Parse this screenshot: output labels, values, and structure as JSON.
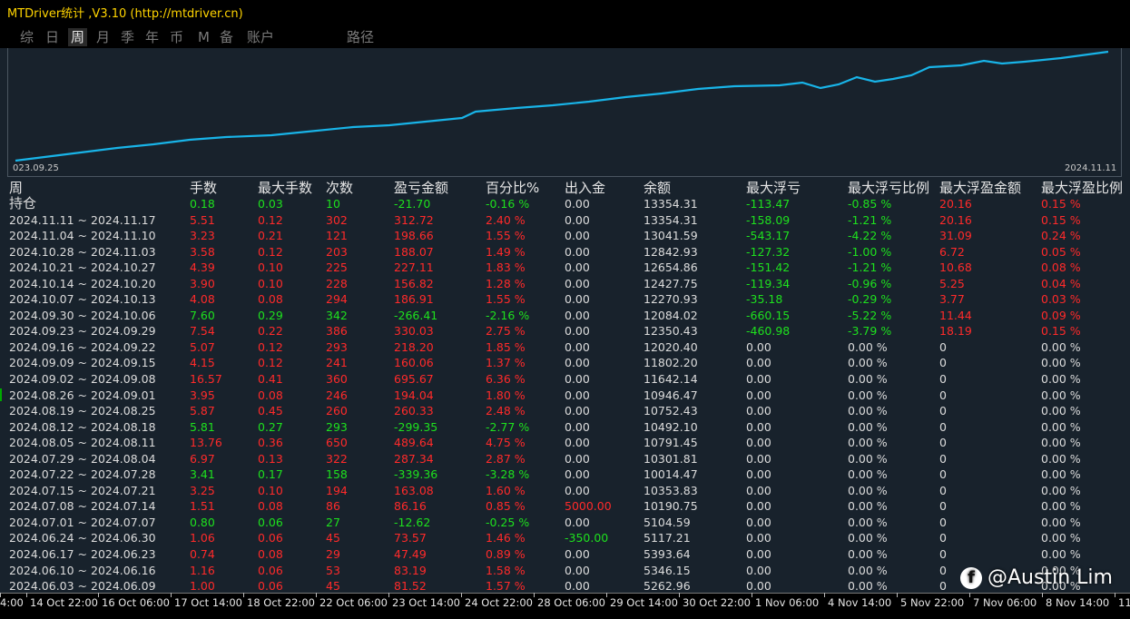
{
  "window": {
    "title": "MTDriver统计 ,V3.10 (http://mtdriver.cn)"
  },
  "tabs": [
    {
      "label": "综",
      "active": false
    },
    {
      "label": "日",
      "active": false
    },
    {
      "label": "周",
      "active": true
    },
    {
      "label": "月",
      "active": false
    },
    {
      "label": "季",
      "active": false
    },
    {
      "label": "年",
      "active": false
    },
    {
      "label": "币",
      "active": false
    },
    {
      "label": "M",
      "active": false
    },
    {
      "label": "备",
      "active": false
    },
    {
      "label": "账户",
      "active": false
    },
    {
      "label": "路径",
      "active": false
    }
  ],
  "chart": {
    "start_label": "023.09.25",
    "end_label": "2024.11.11",
    "line_color": "#18b4e8"
  },
  "table": {
    "headers": [
      "周",
      "手数",
      "最大手数",
      "次数",
      "盈亏金额",
      "百分比%",
      "出入金",
      "余额",
      "最大浮亏",
      "最大浮亏比例",
      "最大浮盈金额",
      "最大浮盈比例"
    ],
    "position_row": {
      "label": "持仓",
      "lots": "0.18",
      "max_lots": "0.03",
      "count": "10",
      "pnl": "-21.70",
      "pct": "-0.16 %",
      "flow": "0.00",
      "balance": "13354.31",
      "max_dd": "-113.47",
      "max_dd_pct": "-0.85 %",
      "max_fp": "20.16",
      "max_fp_pct": "0.15 %",
      "color": "g"
    },
    "rows": [
      {
        "label": "2024.11.11 ~ 2024.11.17",
        "lots": "5.51",
        "max_lots": "0.12",
        "count": "302",
        "pnl": "312.72",
        "pct": "2.40 %",
        "flow": "0.00",
        "balance": "13354.31",
        "max_dd": "-158.09",
        "max_dd_pct": "-1.21 %",
        "max_fp": "20.16",
        "max_fp_pct": "0.15 %",
        "color": "r"
      },
      {
        "label": "2024.11.04 ~ 2024.11.10",
        "lots": "3.23",
        "max_lots": "0.21",
        "count": "121",
        "pnl": "198.66",
        "pct": "1.55 %",
        "flow": "0.00",
        "balance": "13041.59",
        "max_dd": "-543.17",
        "max_dd_pct": "-4.22 %",
        "max_fp": "31.09",
        "max_fp_pct": "0.24 %",
        "color": "r"
      },
      {
        "label": "2024.10.28 ~ 2024.11.03",
        "lots": "3.58",
        "max_lots": "0.12",
        "count": "203",
        "pnl": "188.07",
        "pct": "1.49 %",
        "flow": "0.00",
        "balance": "12842.93",
        "max_dd": "-127.32",
        "max_dd_pct": "-1.00 %",
        "max_fp": "6.72",
        "max_fp_pct": "0.05 %",
        "color": "r"
      },
      {
        "label": "2024.10.21 ~ 2024.10.27",
        "lots": "4.39",
        "max_lots": "0.10",
        "count": "225",
        "pnl": "227.11",
        "pct": "1.83 %",
        "flow": "0.00",
        "balance": "12654.86",
        "max_dd": "-151.42",
        "max_dd_pct": "-1.21 %",
        "max_fp": "10.68",
        "max_fp_pct": "0.08 %",
        "color": "r"
      },
      {
        "label": "2024.10.14 ~ 2024.10.20",
        "lots": "3.90",
        "max_lots": "0.10",
        "count": "228",
        "pnl": "156.82",
        "pct": "1.28 %",
        "flow": "0.00",
        "balance": "12427.75",
        "max_dd": "-119.34",
        "max_dd_pct": "-0.96 %",
        "max_fp": "5.25",
        "max_fp_pct": "0.04 %",
        "color": "r"
      },
      {
        "label": "2024.10.07 ~ 2024.10.13",
        "lots": "4.08",
        "max_lots": "0.08",
        "count": "294",
        "pnl": "186.91",
        "pct": "1.55 %",
        "flow": "0.00",
        "balance": "12270.93",
        "max_dd": "-35.18",
        "max_dd_pct": "-0.29 %",
        "max_fp": "3.77",
        "max_fp_pct": "0.03 %",
        "color": "r"
      },
      {
        "label": "2024.09.30 ~ 2024.10.06",
        "lots": "7.60",
        "max_lots": "0.29",
        "count": "342",
        "pnl": "-266.41",
        "pct": "-2.16 %",
        "flow": "0.00",
        "balance": "12084.02",
        "max_dd": "-660.15",
        "max_dd_pct": "-5.22 %",
        "max_fp": "11.44",
        "max_fp_pct": "0.09 %",
        "color": "g"
      },
      {
        "label": "2024.09.23 ~ 2024.09.29",
        "lots": "7.54",
        "max_lots": "0.22",
        "count": "386",
        "pnl": "330.03",
        "pct": "2.75 %",
        "flow": "0.00",
        "balance": "12350.43",
        "max_dd": "-460.98",
        "max_dd_pct": "-3.79 %",
        "max_fp": "18.19",
        "max_fp_pct": "0.15 %",
        "color": "r"
      },
      {
        "label": "2024.09.16 ~ 2024.09.22",
        "lots": "5.07",
        "max_lots": "0.12",
        "count": "293",
        "pnl": "218.20",
        "pct": "1.85 %",
        "flow": "0.00",
        "balance": "12020.40",
        "max_dd": "0.00",
        "max_dd_pct": "0.00 %",
        "max_fp": "0",
        "max_fp_pct": "0.00 %",
        "color": "r"
      },
      {
        "label": "2024.09.09 ~ 2024.09.15",
        "lots": "4.15",
        "max_lots": "0.12",
        "count": "241",
        "pnl": "160.06",
        "pct": "1.37 %",
        "flow": "0.00",
        "balance": "11802.20",
        "max_dd": "0.00",
        "max_dd_pct": "0.00 %",
        "max_fp": "0",
        "max_fp_pct": "0.00 %",
        "color": "r"
      },
      {
        "label": "2024.09.02 ~ 2024.09.08",
        "lots": "16.57",
        "max_lots": "0.41",
        "count": "360",
        "pnl": "695.67",
        "pct": "6.36 %",
        "flow": "0.00",
        "balance": "11642.14",
        "max_dd": "0.00",
        "max_dd_pct": "0.00 %",
        "max_fp": "0",
        "max_fp_pct": "0.00 %",
        "color": "r"
      },
      {
        "label": "2024.08.26 ~ 2024.09.01",
        "lots": "3.95",
        "max_lots": "0.08",
        "count": "246",
        "pnl": "194.04",
        "pct": "1.80 %",
        "flow": "0.00",
        "balance": "10946.47",
        "max_dd": "0.00",
        "max_dd_pct": "0.00 %",
        "max_fp": "0",
        "max_fp_pct": "0.00 %",
        "color": "r"
      },
      {
        "label": "2024.08.19 ~ 2024.08.25",
        "lots": "5.87",
        "max_lots": "0.45",
        "count": "260",
        "pnl": "260.33",
        "pct": "2.48 %",
        "flow": "0.00",
        "balance": "10752.43",
        "max_dd": "0.00",
        "max_dd_pct": "0.00 %",
        "max_fp": "0",
        "max_fp_pct": "0.00 %",
        "color": "r"
      },
      {
        "label": "2024.08.12 ~ 2024.08.18",
        "lots": "5.81",
        "max_lots": "0.27",
        "count": "293",
        "pnl": "-299.35",
        "pct": "-2.77 %",
        "flow": "0.00",
        "balance": "10492.10",
        "max_dd": "0.00",
        "max_dd_pct": "0.00 %",
        "max_fp": "0",
        "max_fp_pct": "0.00 %",
        "color": "g"
      },
      {
        "label": "2024.08.05 ~ 2024.08.11",
        "lots": "13.76",
        "max_lots": "0.36",
        "count": "650",
        "pnl": "489.64",
        "pct": "4.75 %",
        "flow": "0.00",
        "balance": "10791.45",
        "max_dd": "0.00",
        "max_dd_pct": "0.00 %",
        "max_fp": "0",
        "max_fp_pct": "0.00 %",
        "color": "r"
      },
      {
        "label": "2024.07.29 ~ 2024.08.04",
        "lots": "6.97",
        "max_lots": "0.13",
        "count": "322",
        "pnl": "287.34",
        "pct": "2.87 %",
        "flow": "0.00",
        "balance": "10301.81",
        "max_dd": "0.00",
        "max_dd_pct": "0.00 %",
        "max_fp": "0",
        "max_fp_pct": "0.00 %",
        "color": "r"
      },
      {
        "label": "2024.07.22 ~ 2024.07.28",
        "lots": "3.41",
        "max_lots": "0.17",
        "count": "158",
        "pnl": "-339.36",
        "pct": "-3.28 %",
        "flow": "0.00",
        "balance": "10014.47",
        "max_dd": "0.00",
        "max_dd_pct": "0.00 %",
        "max_fp": "0",
        "max_fp_pct": "0.00 %",
        "color": "g"
      },
      {
        "label": "2024.07.15 ~ 2024.07.21",
        "lots": "3.25",
        "max_lots": "0.10",
        "count": "194",
        "pnl": "163.08",
        "pct": "1.60 %",
        "flow": "0.00",
        "balance": "10353.83",
        "max_dd": "0.00",
        "max_dd_pct": "0.00 %",
        "max_fp": "0",
        "max_fp_pct": "0.00 %",
        "color": "r"
      },
      {
        "label": "2024.07.08 ~ 2024.07.14",
        "lots": "1.51",
        "max_lots": "0.08",
        "count": "86",
        "pnl": "86.16",
        "pct": "0.85 %",
        "flow": "5000.00",
        "balance": "10190.75",
        "max_dd": "0.00",
        "max_dd_pct": "0.00 %",
        "max_fp": "0",
        "max_fp_pct": "0.00 %",
        "color": "r",
        "flow_color": "r"
      },
      {
        "label": "2024.07.01 ~ 2024.07.07",
        "lots": "0.80",
        "max_lots": "0.06",
        "count": "27",
        "pnl": "-12.62",
        "pct": "-0.25 %",
        "flow": "0.00",
        "balance": "5104.59",
        "max_dd": "0.00",
        "max_dd_pct": "0.00 %",
        "max_fp": "0",
        "max_fp_pct": "0.00 %",
        "color": "g"
      },
      {
        "label": "2024.06.24 ~ 2024.06.30",
        "lots": "1.06",
        "max_lots": "0.06",
        "count": "45",
        "pnl": "73.57",
        "pct": "1.46 %",
        "flow": "-350.00",
        "balance": "5117.21",
        "max_dd": "0.00",
        "max_dd_pct": "0.00 %",
        "max_fp": "0",
        "max_fp_pct": "0.00 %",
        "color": "r",
        "flow_color": "g"
      },
      {
        "label": "2024.06.17 ~ 2024.06.23",
        "lots": "0.74",
        "max_lots": "0.08",
        "count": "29",
        "pnl": "47.49",
        "pct": "0.89 %",
        "flow": "0.00",
        "balance": "5393.64",
        "max_dd": "0.00",
        "max_dd_pct": "0.00 %",
        "max_fp": "0",
        "max_fp_pct": "0.00 %",
        "color": "r"
      },
      {
        "label": "2024.06.10 ~ 2024.06.16",
        "lots": "1.16",
        "max_lots": "0.06",
        "count": "53",
        "pnl": "83.19",
        "pct": "1.58 %",
        "flow": "0.00",
        "balance": "5346.15",
        "max_dd": "0.00",
        "max_dd_pct": "0.00 %",
        "max_fp": "0",
        "max_fp_pct": "0.00 %",
        "color": "r"
      },
      {
        "label": "2024.06.03 ~ 2024.06.09",
        "lots": "1.00",
        "max_lots": "0.06",
        "count": "45",
        "pnl": "81.52",
        "pct": "1.57 %",
        "flow": "0.00",
        "balance": "5262.96",
        "max_dd": "0.00",
        "max_dd_pct": "0.00 %",
        "max_fp": "0",
        "max_fp_pct": "0.00 %",
        "color": "r"
      }
    ]
  },
  "time_axis": {
    "labels": [
      "4:00",
      "14 Oct 22:00",
      "16 Oct 06:00",
      "17 Oct 14:00",
      "18 Oct 22:00",
      "22 Oct 06:00",
      "23 Oct 14:00",
      "24 Oct 22:00",
      "28 Oct 06:00",
      "29 Oct 14:00",
      "30 Oct 22:00",
      "1 Nov 06:00",
      "4 Nov 14:00",
      "5 Nov 22:00",
      "7 Nov 06:00",
      "8 Nov 14:00",
      "11"
    ]
  },
  "watermark": {
    "text": "@Austin Lim",
    "icon": "facebook-icon"
  }
}
